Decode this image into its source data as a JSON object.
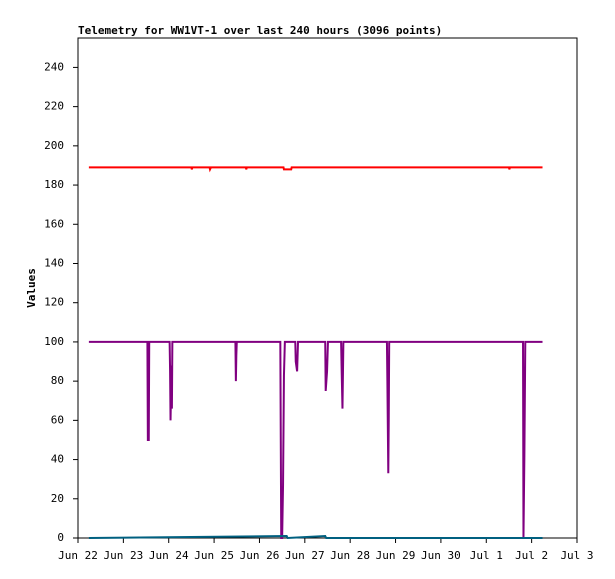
{
  "chart_data": {
    "type": "line",
    "title": "Telemetry for WW1VT-1 over last 240 hours (3096 points)",
    "y_label": "Values",
    "xlim": [
      0,
      11
    ],
    "xticks": [
      {
        "value": 0,
        "label": "Jun 22"
      },
      {
        "value": 1,
        "label": "Jun 23"
      },
      {
        "value": 2,
        "label": "Jun 24"
      },
      {
        "value": 3,
        "label": "Jun 25"
      },
      {
        "value": 4,
        "label": "Jun 26"
      },
      {
        "value": 5,
        "label": "Jun 27"
      },
      {
        "value": 6,
        "label": "Jun 28"
      },
      {
        "value": 7,
        "label": "Jun 29"
      },
      {
        "value": 8,
        "label": "Jun 30"
      },
      {
        "value": 9,
        "label": "Jul 1"
      },
      {
        "value": 10,
        "label": "Jul 2"
      },
      {
        "value": 11,
        "label": "Jul 3"
      }
    ],
    "ylim": [
      0,
      255
    ],
    "yticks": [
      0,
      20,
      40,
      60,
      80,
      100,
      120,
      140,
      160,
      180,
      200,
      220,
      240
    ],
    "grid": false,
    "series": [
      {
        "color": "#ff0000",
        "x": [
          0.24,
          2.5,
          2.51,
          2.52,
          2.9,
          2.91,
          2.93,
          3.7,
          3.71,
          3.72,
          4.53,
          4.54,
          4.7,
          4.71,
          9.5,
          9.51,
          9.52,
          10.24
        ],
        "values": [
          189,
          189,
          188,
          189,
          189,
          188,
          189,
          189,
          188,
          189,
          189,
          188,
          188,
          189,
          189,
          188,
          189,
          189
        ]
      },
      {
        "color": "#800080",
        "x": [
          0.24,
          1.53,
          1.54,
          1.56,
          1.57,
          2.02,
          2.03,
          2.04,
          2.06,
          2.07,
          2.08,
          3.47,
          3.48,
          3.49,
          3.5,
          4.46,
          4.47,
          4.48,
          4.5,
          4.52,
          4.54,
          4.56,
          4.79,
          4.8,
          4.83,
          4.85,
          5.45,
          5.46,
          5.49,
          5.51,
          5.8,
          5.81,
          5.83,
          5.85,
          6.81,
          6.82,
          6.84,
          6.85,
          6.86,
          9.81,
          9.82,
          9.84,
          9.86,
          10.24
        ],
        "values": [
          100,
          100,
          50,
          50,
          100,
          100,
          85,
          60,
          88,
          66,
          100,
          100,
          80,
          93,
          100,
          100,
          50,
          0,
          0,
          27,
          83,
          100,
          100,
          90,
          85,
          100,
          100,
          75,
          85,
          100,
          100,
          88,
          66,
          100,
          100,
          80,
          33,
          60,
          100,
          100,
          0,
          42,
          100,
          100
        ]
      },
      {
        "color": "#006080",
        "x": [
          0.24,
          4.6,
          4.62,
          5.45,
          5.47,
          10.24
        ],
        "values": [
          0,
          1,
          0,
          1,
          0,
          0
        ]
      }
    ]
  }
}
